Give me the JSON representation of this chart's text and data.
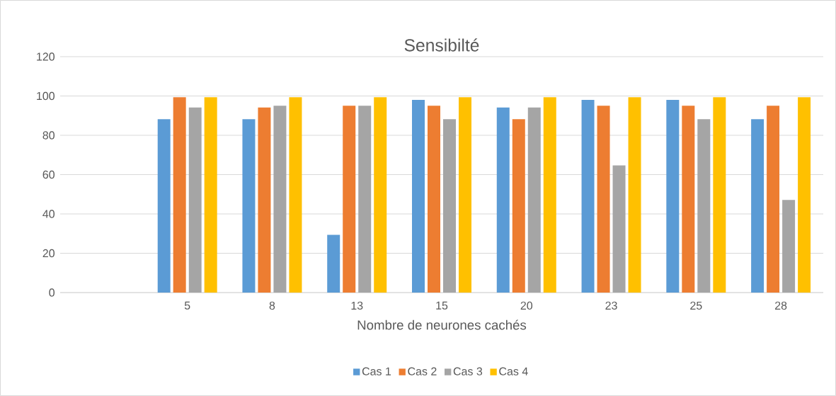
{
  "chart_data": {
    "type": "bar",
    "title": "Sensibilté",
    "xlabel": "Nombre de neurones cachés",
    "categories": [
      null,
      "5",
      "8",
      "13",
      "15",
      "20",
      "23",
      "25",
      "28"
    ],
    "series": [
      {
        "name": "Cas 1",
        "color": "#5b9bd5",
        "values": [
          null,
          88.2,
          88.2,
          29.4,
          98,
          94.1,
          98,
          98,
          88.2
        ]
      },
      {
        "name": "Cas 2",
        "color": "#ed7d31",
        "values": [
          null,
          99.4,
          94.1,
          95,
          95,
          88.2,
          95,
          95,
          95
        ]
      },
      {
        "name": "Cas 3",
        "color": "#a5a5a5",
        "values": [
          null,
          94.1,
          95,
          95,
          88.2,
          94.1,
          64.7,
          88.2,
          47.1
        ]
      },
      {
        "name": "Cas 4",
        "color": "#ffc000",
        "values": [
          null,
          99.4,
          99.4,
          99.4,
          99.4,
          99.4,
          99.4,
          99.4,
          99.4
        ]
      }
    ],
    "ylim": [
      0,
      120
    ],
    "yticks": [
      0,
      20,
      40,
      60,
      80,
      100,
      120
    ],
    "grid": "y",
    "legend": "bottom"
  }
}
